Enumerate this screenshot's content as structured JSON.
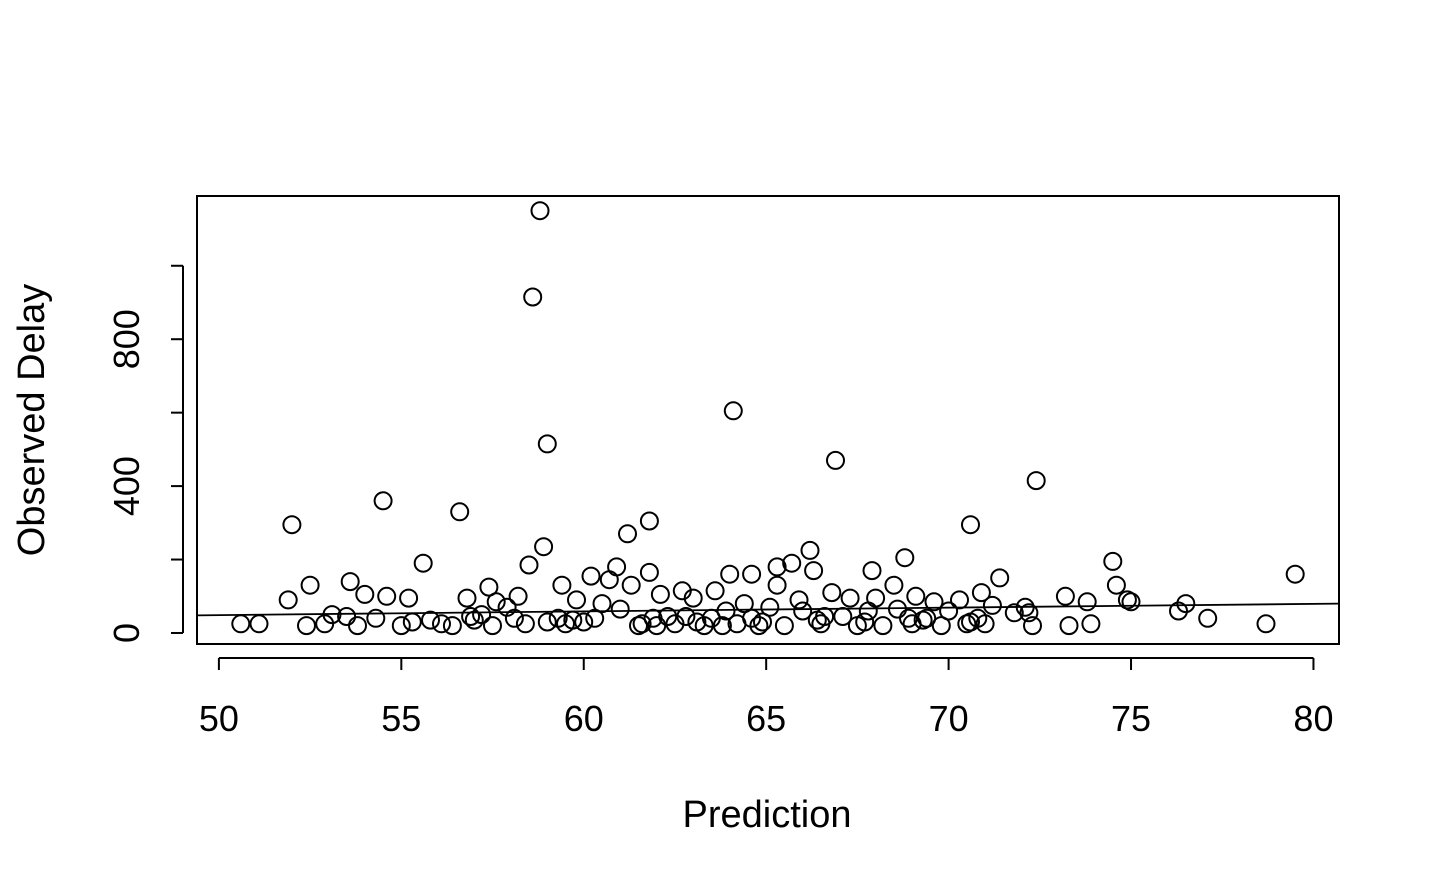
{
  "chart_data": {
    "type": "scatter",
    "title": "",
    "xlabel": "Prediction",
    "ylabel": "Observed Delay",
    "xlim": [
      49.4,
      80.7
    ],
    "ylim": [
      -30,
      1190
    ],
    "x_ticks": [
      50,
      55,
      60,
      65,
      70,
      75,
      80
    ],
    "x_tick_labels": [
      "50",
      "55",
      "60",
      "65",
      "70",
      "75",
      "80"
    ],
    "y_ticks": [
      0,
      200,
      400,
      600,
      800,
      1000
    ],
    "y_tick_labels": [
      "0",
      "",
      "400",
      "",
      "800",
      ""
    ],
    "grid": false,
    "legend": "none",
    "marker": "open-circle",
    "fit_line": {
      "x": [
        49.4,
        80.7
      ],
      "y": [
        48,
        80
      ]
    },
    "points": {
      "x": [
        58.8,
        58.6,
        64.1,
        59.0,
        66.9,
        72.4,
        54.5,
        56.6,
        52.0,
        61.8,
        70.6,
        61.2,
        58.9,
        66.2,
        68.8,
        74.5,
        58.5,
        55.6,
        79.5,
        65.7,
        65.3,
        61.8,
        66.3,
        67.9,
        60.9,
        64.6,
        53.6,
        60.2,
        64.0,
        71.4,
        74.6,
        52.5,
        60.7,
        61.3,
        65.3,
        68.5,
        57.4,
        51.9,
        73.8,
        59.4,
        62.7,
        63.6,
        66.8,
        70.9,
        74.9,
        73.2,
        76.5,
        54.0,
        54.6,
        55.2,
        56.8,
        57.6,
        58.2,
        59.8,
        60.5,
        62.1,
        63.0,
        64.4,
        65.9,
        67.3,
        68.0,
        69.1,
        69.6,
        70.3,
        71.2,
        72.1,
        75.0,
        76.3,
        77.1,
        53.1,
        50.6,
        51.1,
        52.4,
        52.9,
        53.8,
        55.0,
        55.3,
        56.1,
        56.4,
        57.5,
        58.4,
        59.0,
        59.5,
        60.0,
        61.5,
        61.6,
        62.0,
        62.5,
        63.3,
        63.8,
        64.2,
        64.8,
        65.5,
        66.5,
        67.5,
        68.2,
        69.0,
        69.8,
        70.5,
        71.0,
        72.3,
        73.3,
        73.9,
        78.7,
        57.9,
        61.0,
        63.9,
        65.1,
        66.0,
        67.8,
        68.6,
        70.0,
        71.8,
        72.2,
        60.3,
        62.3,
        64.6,
        66.6,
        53.5,
        54.3,
        56.9,
        58.1,
        59.3,
        61.9,
        62.8,
        63.5,
        67.1,
        68.9,
        69.4,
        70.8,
        57.2,
        57.0,
        55.8,
        59.7,
        63.1,
        64.9,
        66.4,
        67.7,
        69.3,
        70.6
      ],
      "y": [
        1150,
        915,
        605,
        515,
        470,
        415,
        360,
        330,
        295,
        305,
        295,
        270,
        235,
        225,
        205,
        195,
        185,
        190,
        160,
        190,
        180,
        165,
        170,
        170,
        180,
        160,
        140,
        155,
        160,
        150,
        130,
        130,
        145,
        130,
        130,
        130,
        125,
        90,
        85,
        130,
        115,
        115,
        110,
        110,
        90,
        100,
        80,
        105,
        100,
        95,
        95,
        85,
        100,
        90,
        80,
        105,
        95,
        80,
        90,
        95,
        95,
        100,
        85,
        90,
        75,
        70,
        85,
        60,
        40,
        50,
        25,
        25,
        20,
        25,
        20,
        20,
        30,
        25,
        20,
        20,
        25,
        30,
        25,
        30,
        20,
        25,
        20,
        25,
        20,
        20,
        25,
        20,
        20,
        25,
        20,
        20,
        25,
        20,
        25,
        25,
        20,
        20,
        25,
        25,
        70,
        65,
        60,
        70,
        60,
        60,
        65,
        60,
        55,
        55,
        40,
        45,
        40,
        45,
        45,
        40,
        45,
        40,
        40,
        40,
        45,
        40,
        45,
        40,
        40,
        40,
        50,
        35,
        35,
        35,
        30,
        30,
        35,
        30,
        35,
        30
      ]
    }
  }
}
